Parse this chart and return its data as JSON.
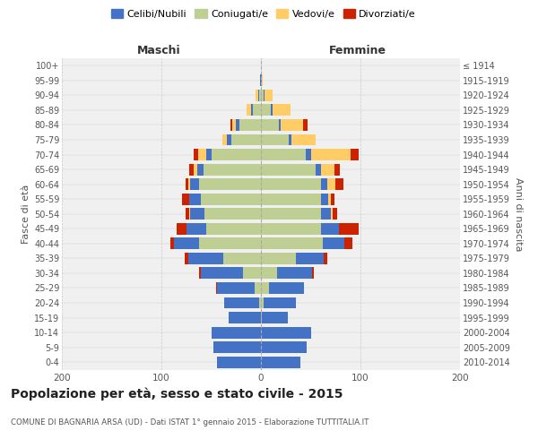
{
  "age_groups": [
    "0-4",
    "5-9",
    "10-14",
    "15-19",
    "20-24",
    "25-29",
    "30-34",
    "35-39",
    "40-44",
    "45-49",
    "50-54",
    "55-59",
    "60-64",
    "65-69",
    "70-74",
    "75-79",
    "80-84",
    "85-89",
    "90-94",
    "95-99",
    "100+"
  ],
  "birth_years": [
    "2010-2014",
    "2005-2009",
    "2000-2004",
    "1995-1999",
    "1990-1994",
    "1985-1989",
    "1980-1984",
    "1975-1979",
    "1970-1974",
    "1965-1969",
    "1960-1964",
    "1955-1959",
    "1950-1954",
    "1945-1949",
    "1940-1944",
    "1935-1939",
    "1930-1934",
    "1925-1929",
    "1920-1924",
    "1915-1919",
    "≤ 1914"
  ],
  "male": {
    "celibi": [
      44,
      48,
      50,
      32,
      35,
      38,
      42,
      35,
      25,
      20,
      14,
      12,
      9,
      6,
      5,
      4,
      3,
      2,
      1,
      1,
      0
    ],
    "coniugati": [
      0,
      0,
      0,
      0,
      2,
      6,
      18,
      38,
      62,
      55,
      57,
      60,
      62,
      58,
      50,
      30,
      22,
      8,
      2,
      0,
      0
    ],
    "vedovi": [
      0,
      0,
      0,
      0,
      0,
      0,
      0,
      0,
      0,
      0,
      1,
      0,
      2,
      4,
      8,
      5,
      4,
      4,
      2,
      0,
      0
    ],
    "divorziati": [
      0,
      0,
      0,
      0,
      0,
      1,
      2,
      4,
      4,
      10,
      4,
      7,
      3,
      4,
      5,
      0,
      2,
      0,
      0,
      0,
      0
    ]
  },
  "female": {
    "nubili": [
      40,
      46,
      50,
      26,
      32,
      35,
      35,
      28,
      22,
      18,
      10,
      8,
      7,
      5,
      5,
      3,
      2,
      2,
      1,
      1,
      0
    ],
    "coniugate": [
      0,
      0,
      0,
      1,
      3,
      8,
      16,
      35,
      62,
      60,
      60,
      60,
      60,
      55,
      45,
      28,
      18,
      10,
      3,
      0,
      0
    ],
    "vedove": [
      0,
      0,
      0,
      0,
      0,
      0,
      0,
      0,
      0,
      0,
      2,
      2,
      8,
      14,
      40,
      24,
      22,
      18,
      8,
      1,
      0
    ],
    "divorziate": [
      0,
      0,
      0,
      0,
      0,
      0,
      2,
      4,
      8,
      20,
      5,
      4,
      8,
      5,
      8,
      0,
      5,
      0,
      0,
      0,
      0
    ]
  },
  "colors": {
    "celibi_nubili": "#4472C4",
    "coniugati": "#BFCE93",
    "vedovi": "#FFCC66",
    "divorziati": "#CC2200"
  },
  "title": "Popolazione per età, sesso e stato civile - 2015",
  "subtitle": "COMUNE DI BAGNARIA ARSA (UD) - Dati ISTAT 1° gennaio 2015 - Elaborazione TUTTITALIA.IT",
  "ylabel_left": "Fasce di età",
  "ylabel_right": "Anni di nascita",
  "xlabel_left": "Maschi",
  "xlabel_right": "Femmine",
  "xlim": 200,
  "bg_color": "#FFFFFF",
  "plot_bg": "#F0F0F0"
}
